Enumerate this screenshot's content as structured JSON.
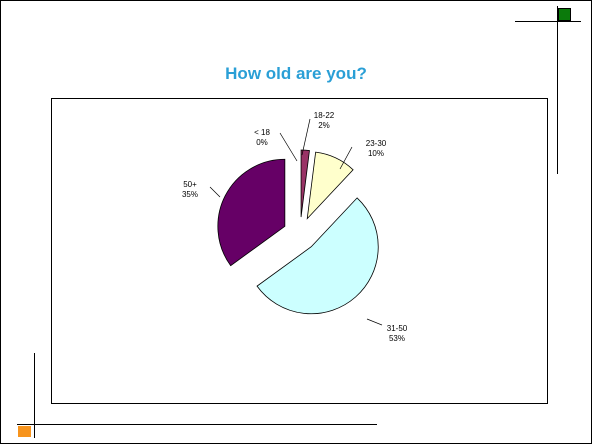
{
  "slide": {
    "accent_green": "#0b7a0b",
    "accent_orange": "#f7941d",
    "title_color": "#2a9fd6"
  },
  "chart_data": {
    "type": "pie",
    "title": "How old are you?",
    "exploded": true,
    "slices": [
      {
        "label": "< 18",
        "value": 0,
        "percent_label": "0%",
        "color": "#8b1a5e"
      },
      {
        "label": "18-22",
        "value": 2,
        "percent_label": "2%",
        "color": "#993366"
      },
      {
        "label": "23-30",
        "value": 10,
        "percent_label": "10%",
        "color": "#ffffcc"
      },
      {
        "label": "31-50",
        "value": 53,
        "percent_label": "53%",
        "color": "#ccffff"
      },
      {
        "label": "50+",
        "value": 35,
        "percent_label": "35%",
        "color": "#660066"
      }
    ]
  }
}
